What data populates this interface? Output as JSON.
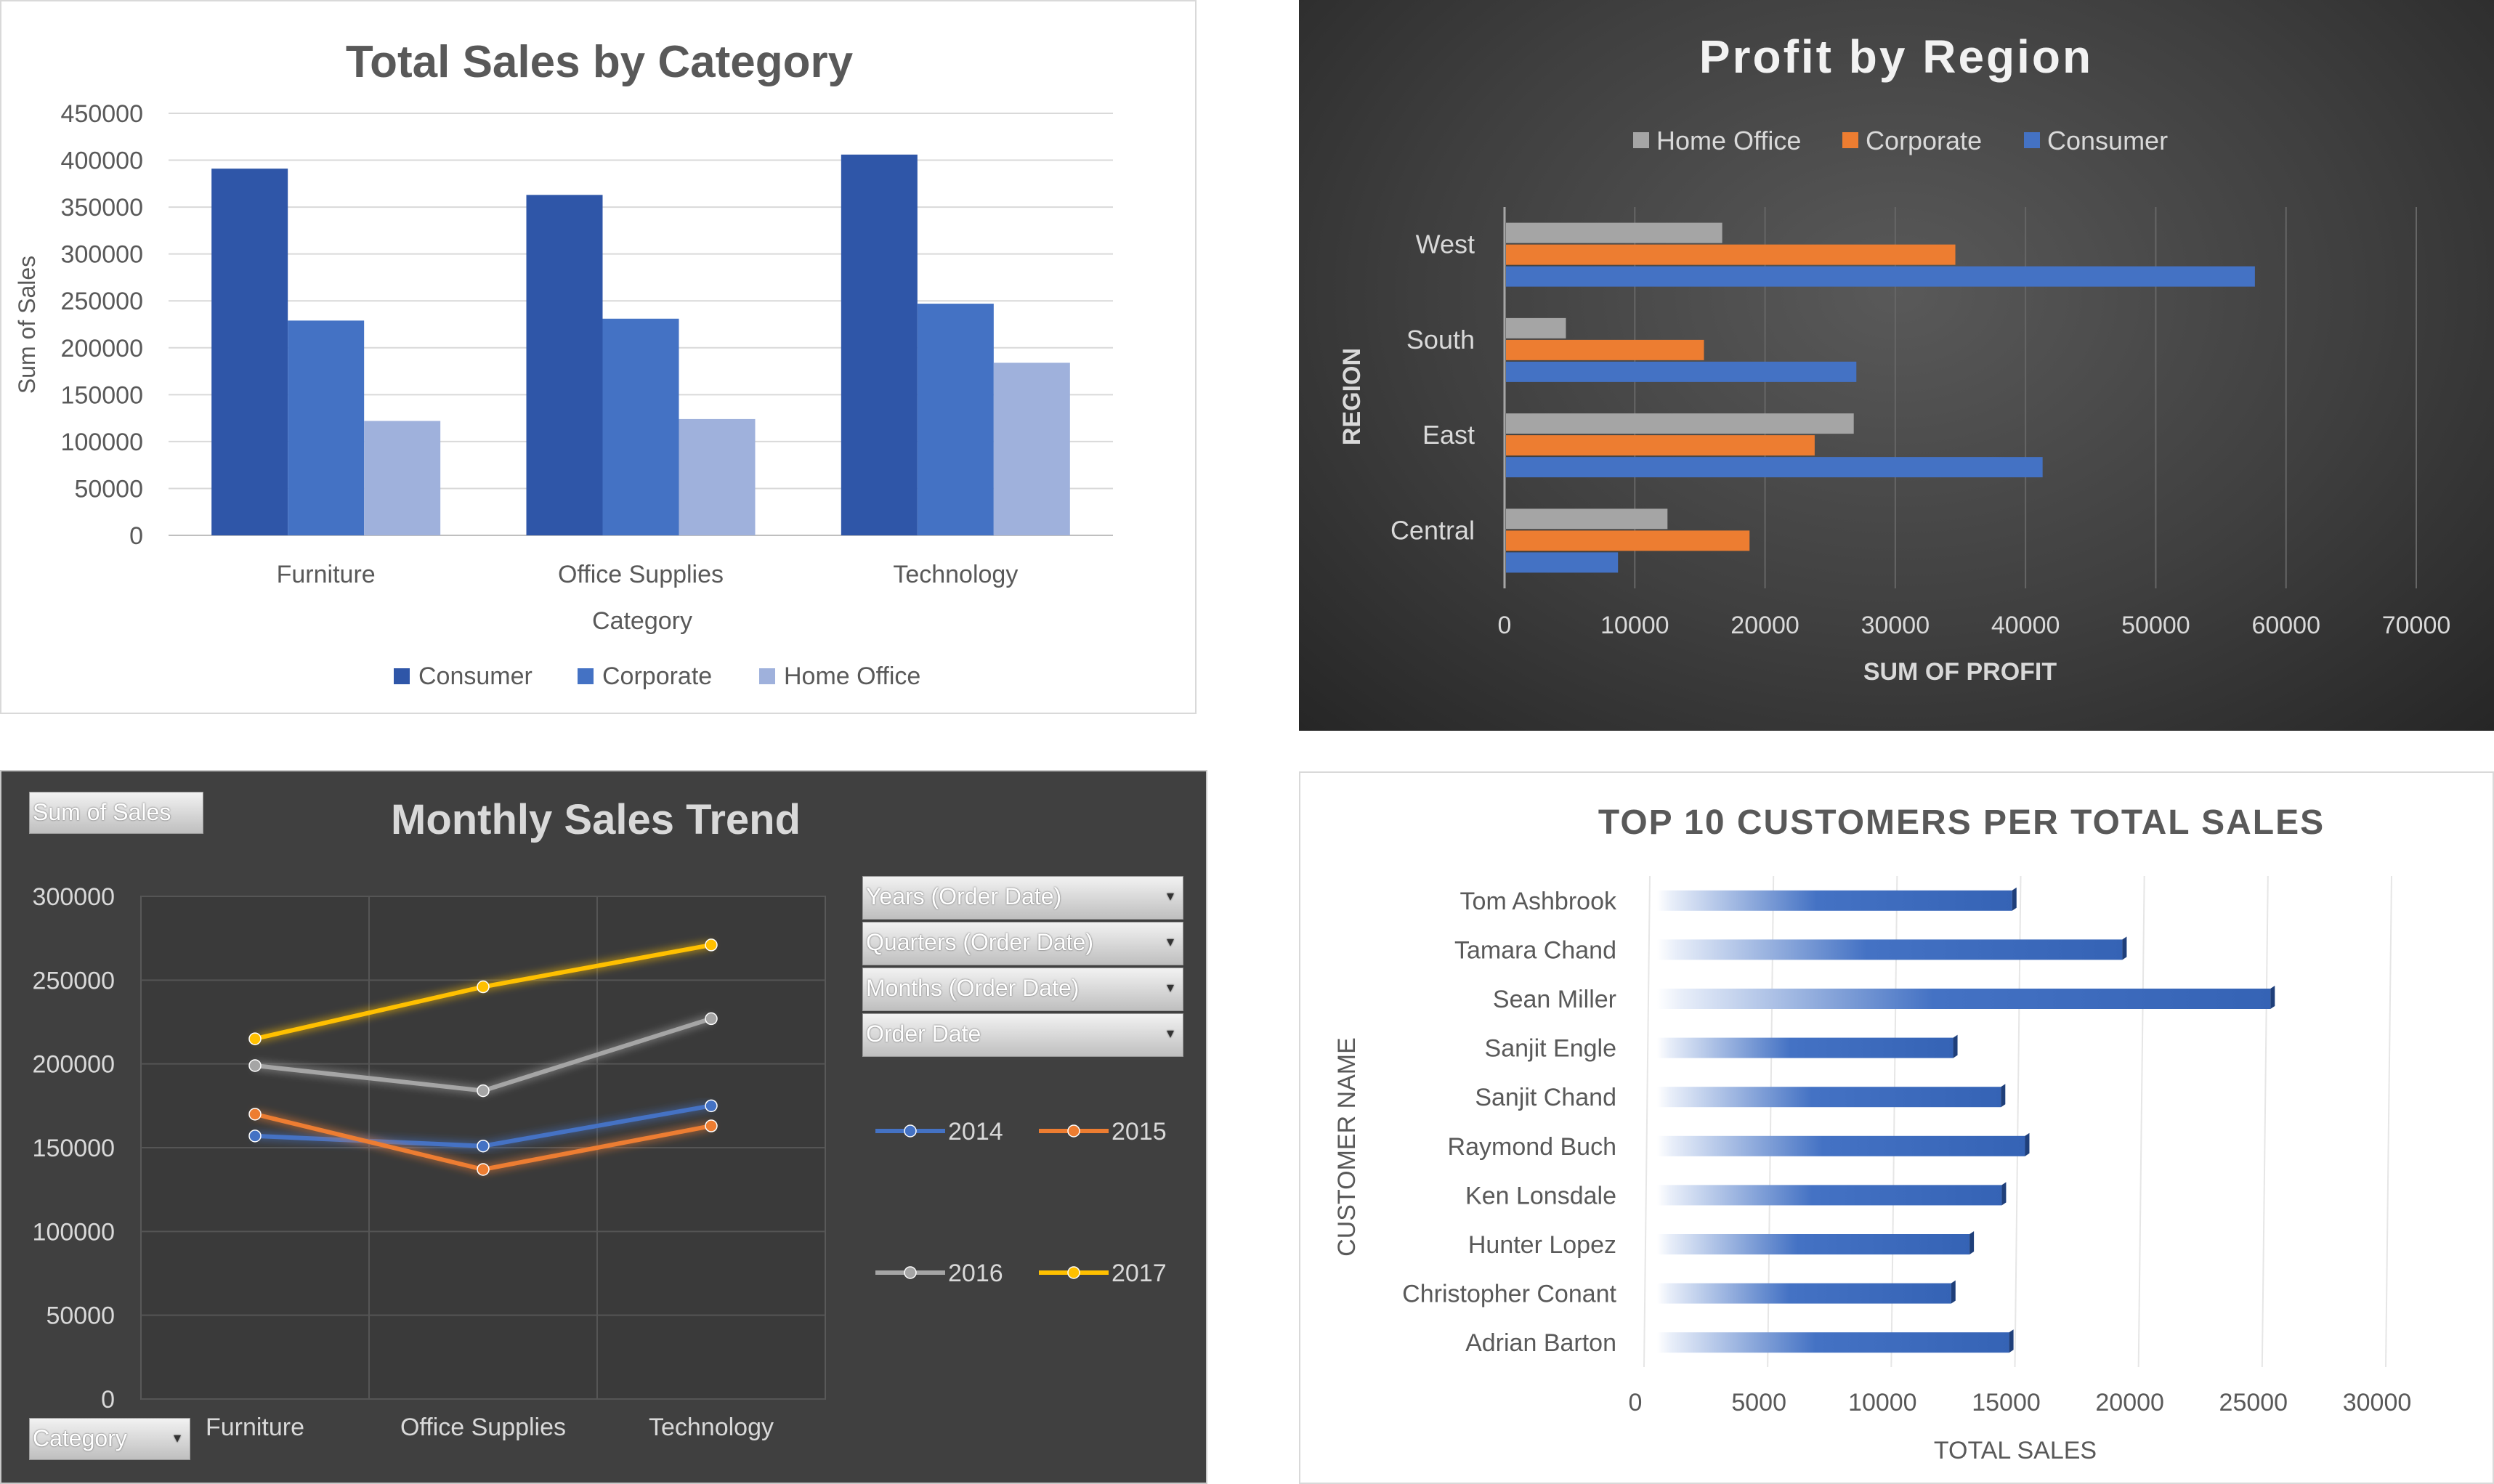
{
  "charts": {
    "sales_by_category": {
      "title": "Total Sales by Category",
      "colors": {
        "Consumer": "#2f56a8",
        "Corporate": "#4472c4",
        "Home Office": "#9fb1dc"
      }
    },
    "profit_by_region": {
      "title": "Profit by Region",
      "colors": {
        "Home Office": "#a5a5a5",
        "Corporate": "#ed7d31",
        "Consumer": "#4472c4"
      }
    },
    "monthly_sales_trend": {
      "title": "Monthly Sales Trend",
      "pivot_buttons": {
        "value_field": "Sum of Sales",
        "category_field": "Category",
        "filters": [
          "Years (Order Date)",
          "Quarters (Order Date)",
          "Months (Order Date)",
          "Order Date"
        ]
      },
      "colors": {
        "2014": "#4472c4",
        "2015": "#ed7d31",
        "2016": "#a5a5a5",
        "2017": "#ffc000"
      }
    },
    "top_customers": {
      "title": "TOP 10 CUSTOMERS PER TOTAL SALES",
      "bar_color": "#4472c4"
    }
  },
  "chart_data": [
    {
      "type": "bar",
      "title": "Total Sales by Category",
      "xlabel": "Category",
      "ylabel": "Sum of Sales",
      "categories": [
        "Furniture",
        "Office Supplies",
        "Technology"
      ],
      "series": [
        {
          "name": "Consumer",
          "values": [
            391000,
            363000,
            406000
          ]
        },
        {
          "name": "Corporate",
          "values": [
            229000,
            231000,
            247000
          ]
        },
        {
          "name": "Home Office",
          "values": [
            122000,
            124000,
            184000
          ]
        }
      ],
      "ylim": [
        0,
        450000
      ],
      "yticks": [
        "0",
        "50000",
        "100000",
        "150000",
        "200000",
        "250000",
        "300000",
        "350000",
        "400000",
        "450000"
      ],
      "grid": true,
      "legend": "bottom"
    },
    {
      "type": "bar",
      "orientation": "horizontal",
      "title": "Profit by Region",
      "xlabel": "SUM OF PROFIT",
      "ylabel": "REGION",
      "categories": [
        "West",
        "South",
        "East",
        "Central"
      ],
      "series": [
        {
          "name": "Home Office",
          "values": [
            16600,
            4600,
            26700,
            12400
          ]
        },
        {
          "name": "Corporate",
          "values": [
            34500,
            15200,
            23700,
            18700
          ]
        },
        {
          "name": "Consumer",
          "values": [
            57500,
            26900,
            41200,
            8600
          ]
        }
      ],
      "xlim": [
        0,
        70000
      ],
      "xticks": [
        "0",
        "10000",
        "20000",
        "30000",
        "40000",
        "50000",
        "60000",
        "70000"
      ],
      "grid": true,
      "legend": "top"
    },
    {
      "type": "line",
      "title": "Monthly Sales Trend",
      "categories": [
        "Furniture",
        "Office Supplies",
        "Technology"
      ],
      "series": [
        {
          "name": "2014",
          "values": [
            157000,
            151000,
            175000
          ]
        },
        {
          "name": "2015",
          "values": [
            170000,
            137000,
            163000
          ]
        },
        {
          "name": "2016",
          "values": [
            199000,
            184000,
            227000
          ]
        },
        {
          "name": "2017",
          "values": [
            215000,
            246000,
            271000
          ]
        }
      ],
      "ylim": [
        0,
        300000
      ],
      "yticks": [
        "0",
        "50000",
        "100000",
        "150000",
        "200000",
        "250000",
        "300000"
      ],
      "grid": true,
      "legend": "right"
    },
    {
      "type": "bar",
      "orientation": "horizontal",
      "title": "TOP 10 CUSTOMERS PER TOTAL SALES",
      "xlabel": "TOTAL SALES",
      "ylabel": "CUSTOMER NAME",
      "categories": [
        "Tom Ashbrook",
        "Tamara Chand",
        "Sean Miller",
        "Sanjit Engle",
        "Sanjit Chand",
        "Raymond Buch",
        "Ken Lonsdale",
        "Hunter Lopez",
        "Christopher Conant",
        "Adrian Barton"
      ],
      "values": [
        14596,
        19052,
        25043,
        12210,
        14142,
        15117,
        14175,
        12873,
        12129,
        14474
      ],
      "xlim": [
        0,
        30000
      ],
      "xticks": [
        "0",
        "5000",
        "10000",
        "15000",
        "20000",
        "25000",
        "30000"
      ],
      "grid": true
    }
  ]
}
